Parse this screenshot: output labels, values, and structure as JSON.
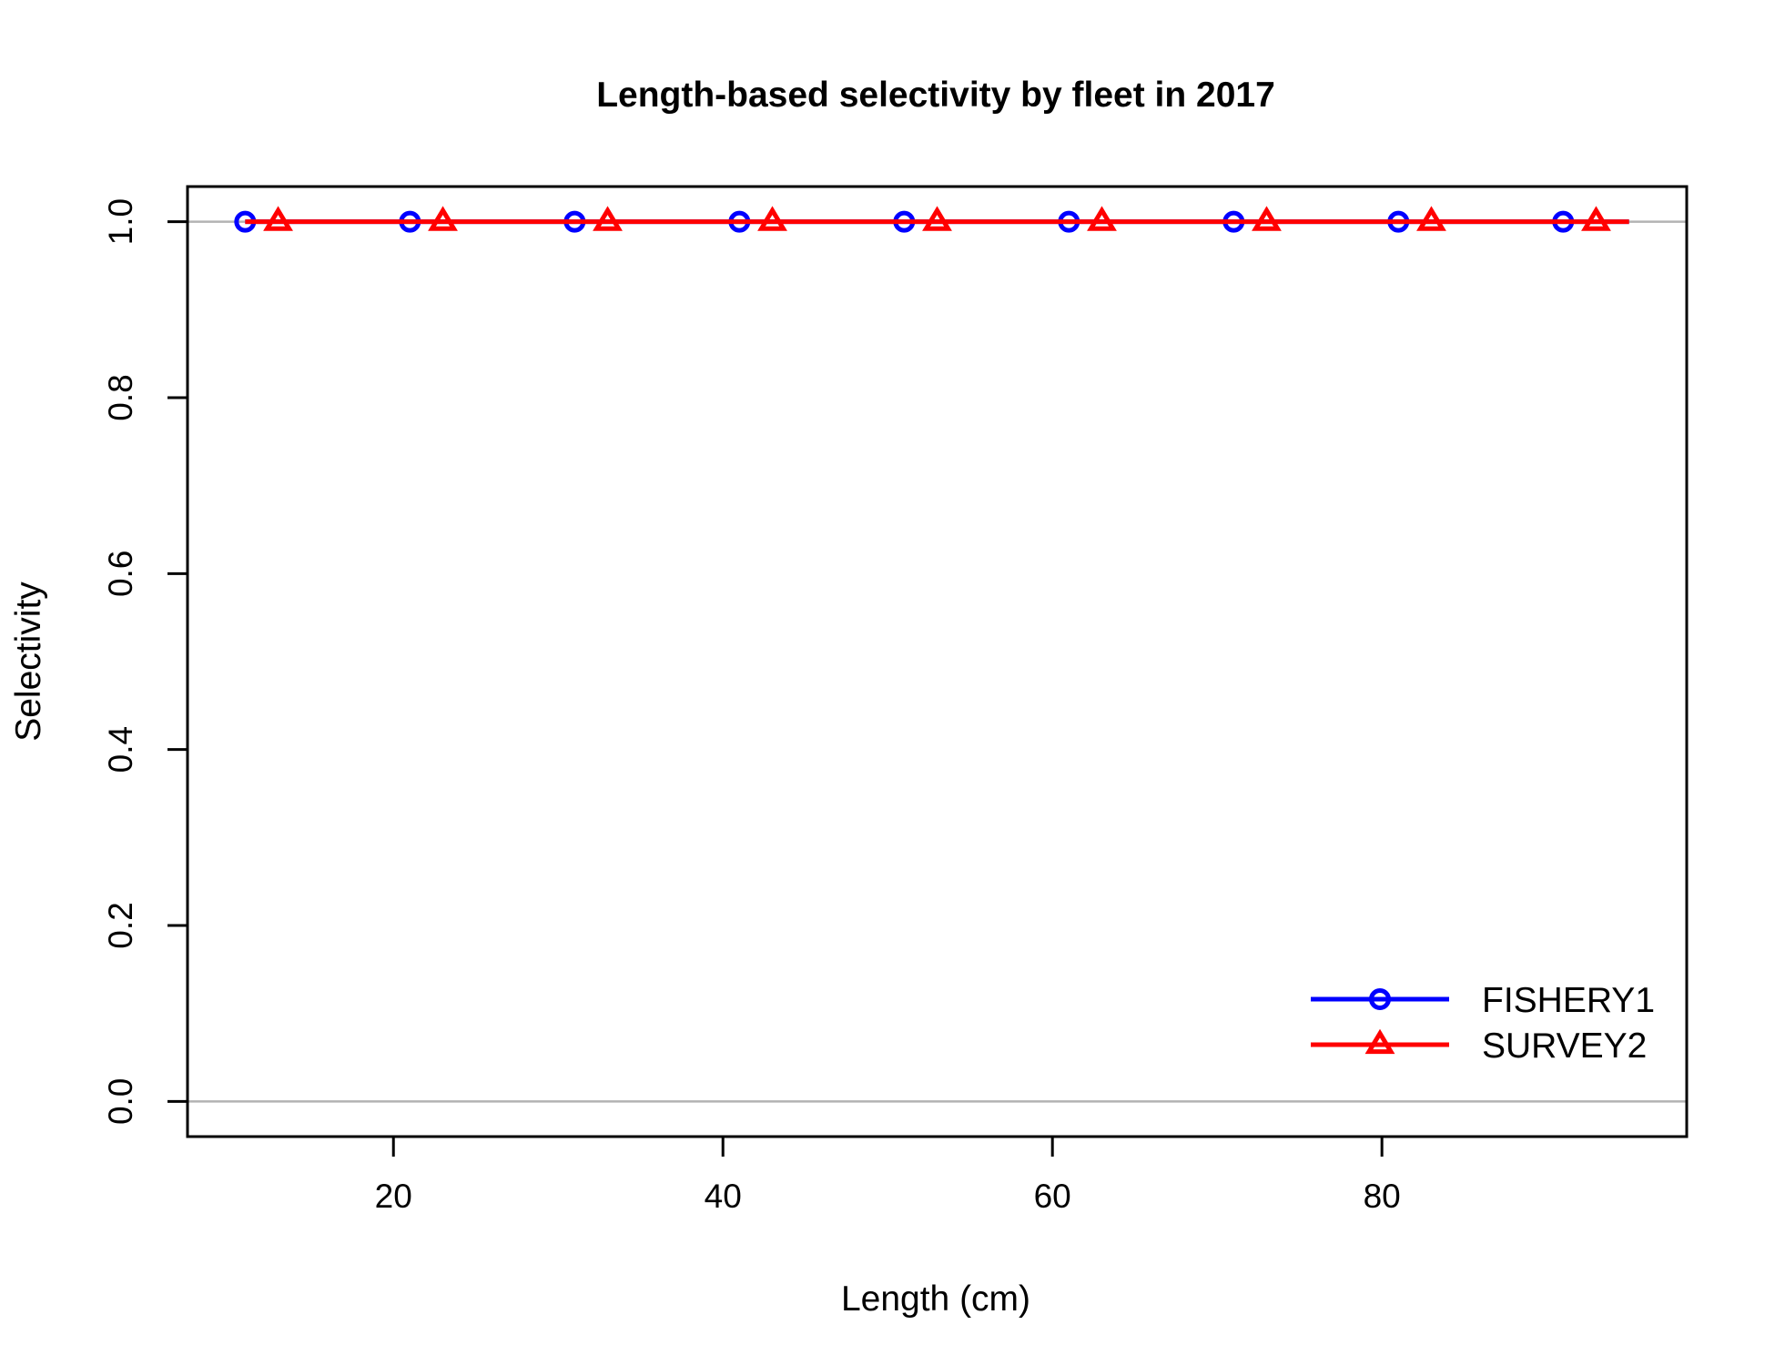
{
  "chart_data": {
    "type": "line",
    "title": "Length-based selectivity by fleet in 2017",
    "xlabel": "Length (cm)",
    "ylabel": "Selectivity",
    "xlim": [
      7.5,
      98.5
    ],
    "ylim": [
      -0.04,
      1.04
    ],
    "x_ticks": [
      "20",
      "40",
      "60",
      "80"
    ],
    "y_ticks": [
      "0.0",
      "0.2",
      "0.4",
      "0.6",
      "0.8",
      "1.0"
    ],
    "reference_lines_y": [
      0,
      1
    ],
    "reference_line_color": "#b3b3b3",
    "legend_position": "bottom-right",
    "series": [
      {
        "name": "FISHERY1",
        "color": "#0000ff",
        "marker": "circle",
        "line_x": [
          11,
          95
        ],
        "line_y": [
          1,
          1
        ],
        "marker_x": [
          11,
          21,
          31,
          41,
          51,
          61,
          71,
          81,
          91
        ],
        "marker_y": [
          1,
          1,
          1,
          1,
          1,
          1,
          1,
          1,
          1
        ]
      },
      {
        "name": "SURVEY2",
        "color": "#ff0000",
        "marker": "triangle",
        "line_x": [
          11,
          95
        ],
        "line_y": [
          1,
          1
        ],
        "marker_x": [
          13,
          23,
          33,
          43,
          53,
          63,
          73,
          83,
          93
        ],
        "marker_y": [
          1,
          1,
          1,
          1,
          1,
          1,
          1,
          1,
          1
        ]
      }
    ]
  }
}
